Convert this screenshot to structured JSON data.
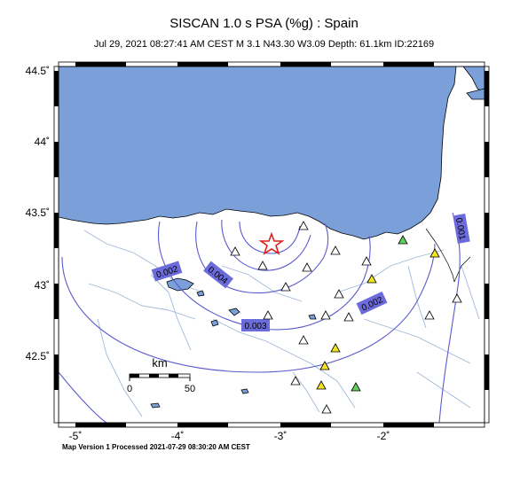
{
  "header": {
    "title": "SISCAN 1.0 s PSA (%g) : Spain",
    "subtitle": "Jul 29, 2021 08:27:41 AM CEST   M 3.1   N43.30 W3.09   Depth: 61.1km   ID:22169"
  },
  "footer": "Map Version 1 Processed 2021-07-29 08:30:20 AM CEST",
  "axes": {
    "x_ticks": [
      "-5˚",
      "-4˚",
      "-3˚",
      "-2˚"
    ],
    "y_ticks": [
      "44.5˚",
      "44˚",
      "43.5˚",
      "43˚",
      "42.5˚"
    ]
  },
  "contours": [
    {
      "label": "0.001"
    },
    {
      "label": "0.002"
    },
    {
      "label": "0.002"
    },
    {
      "label": "0.003"
    },
    {
      "label": "0.004"
    }
  ],
  "scale": {
    "unit": "km",
    "min": "0",
    "max": "50"
  },
  "colors": {
    "sea": "#7ba0d9",
    "contour": "#5a5acd",
    "label_bg": "#6b6bdc",
    "river": "#a0b8d8",
    "epicenter": "#e11d1d",
    "station_green": "#5fcf5f",
    "station_yellow": "#f2e41e",
    "station_white": "#ffffff"
  }
}
